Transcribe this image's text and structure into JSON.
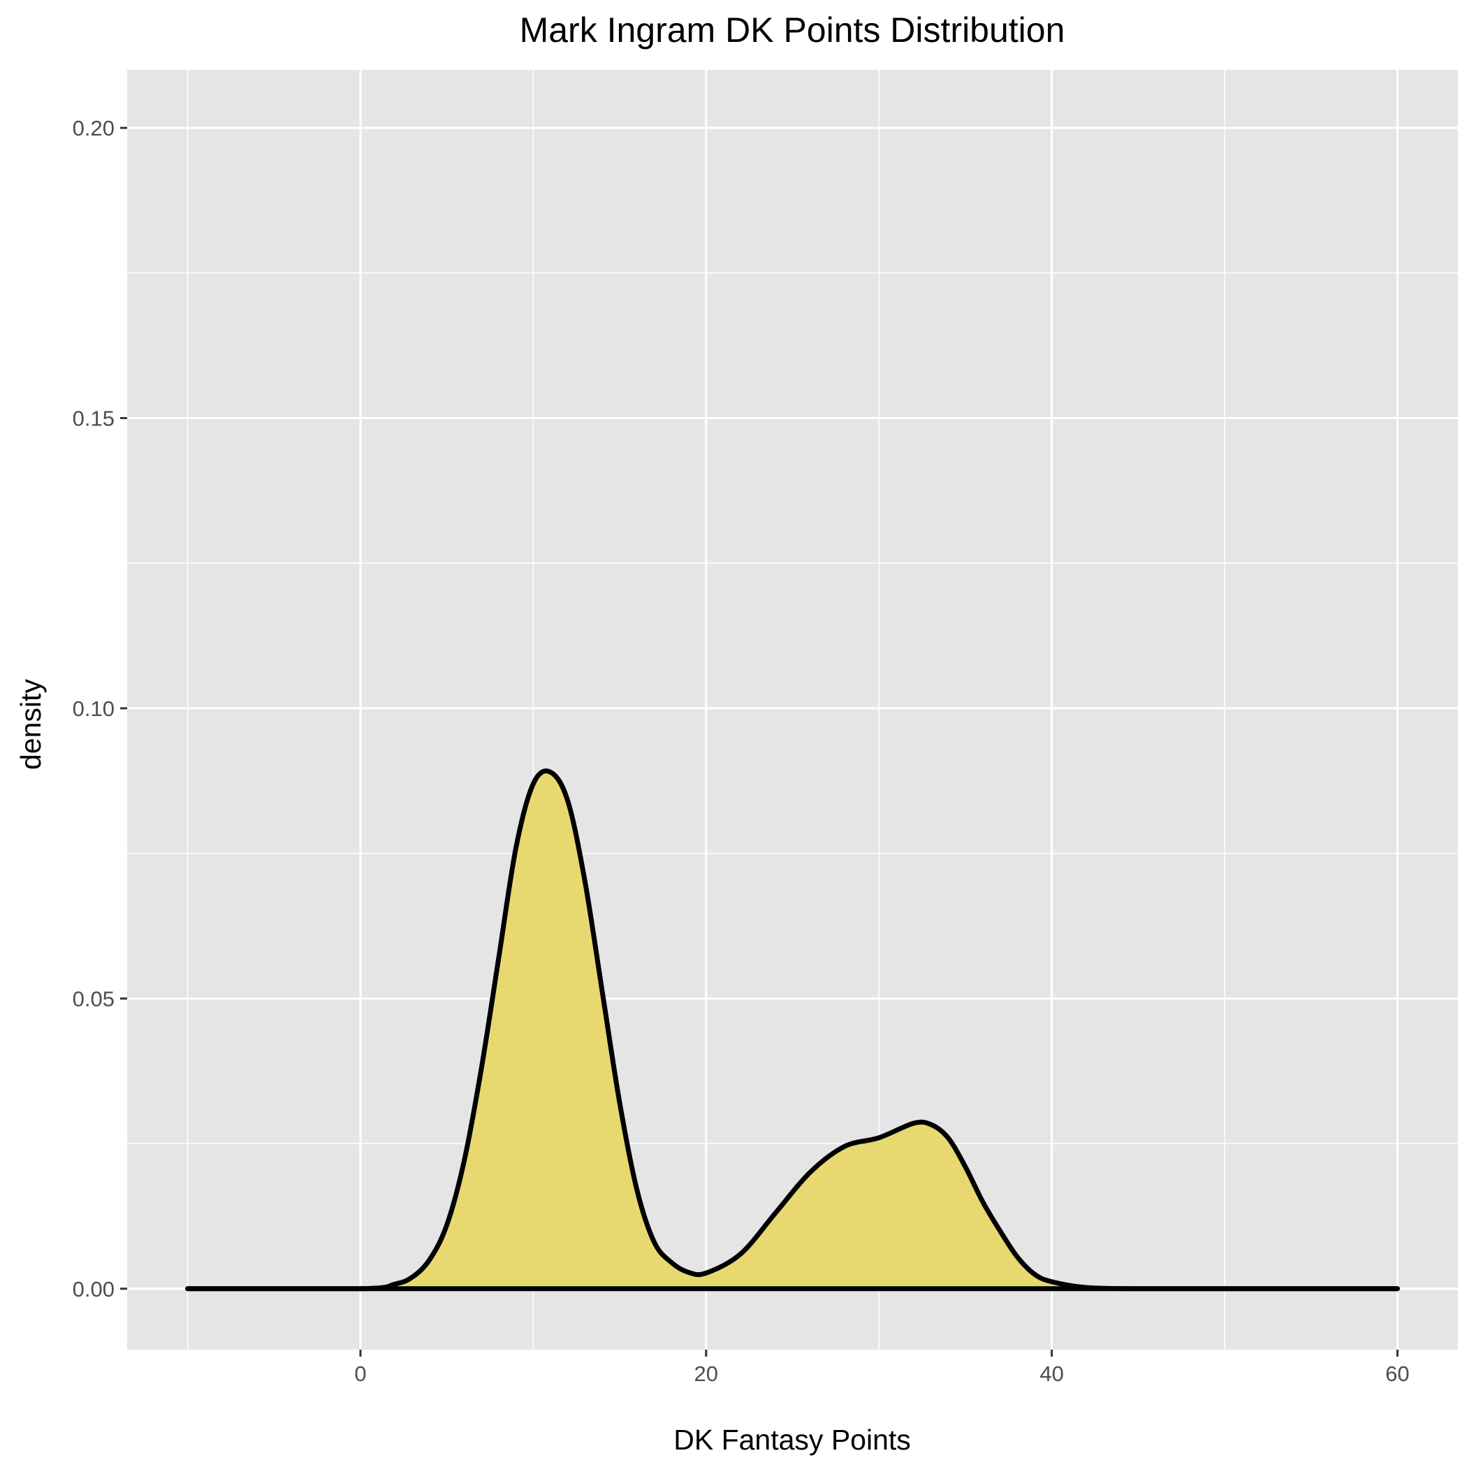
{
  "chart_data": {
    "type": "area",
    "title": "Mark Ingram DK Points Distribution",
    "xlabel": "DK Fantasy Points",
    "ylabel": "density",
    "xlim": [
      -13.5,
      63.5
    ],
    "ylim": [
      -0.0105,
      0.21
    ],
    "x_ticks": [
      0,
      20,
      40,
      60
    ],
    "x_tick_labels": [
      "0",
      "20",
      "40",
      "60"
    ],
    "x_minor_ticks": [
      -10,
      10,
      30,
      50
    ],
    "y_ticks": [
      0,
      0.05,
      0.1,
      0.15,
      0.2
    ],
    "y_tick_labels": [
      "0.00",
      "0.05",
      "0.10",
      "0.15",
      "0.20"
    ],
    "y_minor_ticks": [
      0.025,
      0.075,
      0.125,
      0.175
    ],
    "grid": true,
    "legend": "none",
    "colors": {
      "fill": "#E8D870",
      "line": "#000000",
      "panel": "#E5E5E5",
      "grid": "#FFFFFF"
    },
    "series": [
      {
        "x": [
          -10,
          0,
          2,
          3,
          4,
          5,
          6,
          7,
          8,
          9,
          10,
          11,
          12,
          13,
          14,
          15,
          16,
          17,
          18,
          19,
          20,
          22,
          24,
          26,
          28,
          30,
          32,
          33,
          34,
          35,
          36,
          37,
          38,
          39,
          40,
          42,
          45,
          50,
          55,
          60
        ],
        "y": [
          0,
          0,
          0.0008,
          0.002,
          0.005,
          0.011,
          0.022,
          0.038,
          0.057,
          0.076,
          0.087,
          0.089,
          0.084,
          0.07,
          0.051,
          0.032,
          0.017,
          0.008,
          0.0045,
          0.0028,
          0.0027,
          0.006,
          0.013,
          0.02,
          0.0245,
          0.026,
          0.0285,
          0.0283,
          0.026,
          0.021,
          0.015,
          0.01,
          0.0055,
          0.0025,
          0.0012,
          0.0002,
          0,
          0,
          0,
          0
        ]
      }
    ]
  }
}
